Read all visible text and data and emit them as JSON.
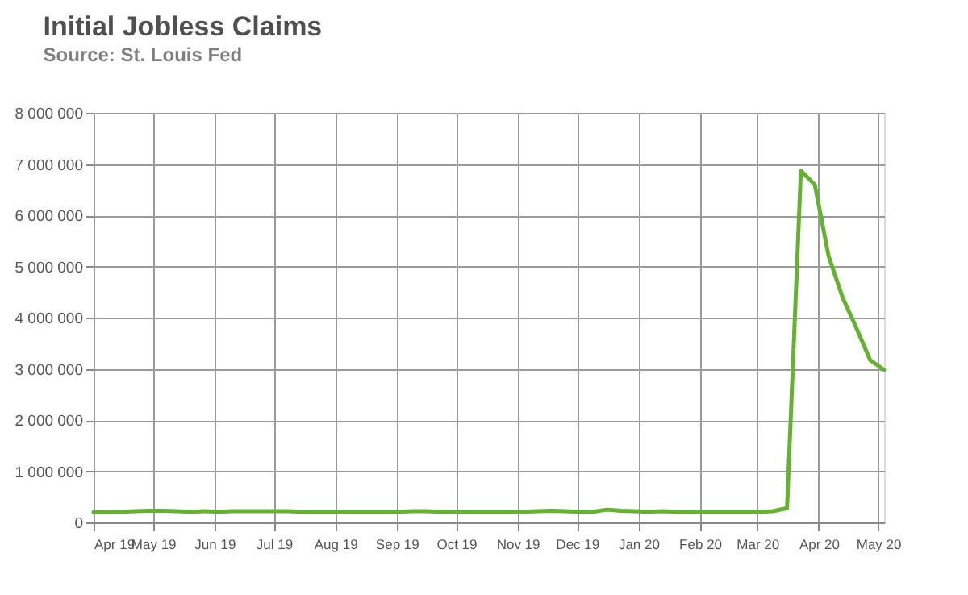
{
  "chart_data": {
    "type": "line",
    "title": "Initial Jobless Claims",
    "subtitle": "Source: St. Louis Fed",
    "x": [
      "2019-04-01",
      "2019-04-08",
      "2019-04-15",
      "2019-04-22",
      "2019-04-29",
      "2019-05-06",
      "2019-05-13",
      "2019-05-20",
      "2019-05-27",
      "2019-06-03",
      "2019-06-10",
      "2019-06-17",
      "2019-06-24",
      "2019-07-01",
      "2019-07-08",
      "2019-07-15",
      "2019-07-22",
      "2019-07-29",
      "2019-08-05",
      "2019-08-12",
      "2019-08-19",
      "2019-08-26",
      "2019-09-02",
      "2019-09-09",
      "2019-09-16",
      "2019-09-23",
      "2019-09-30",
      "2019-10-07",
      "2019-10-14",
      "2019-10-21",
      "2019-10-28",
      "2019-11-04",
      "2019-11-11",
      "2019-11-18",
      "2019-11-25",
      "2019-12-02",
      "2019-12-09",
      "2019-12-16",
      "2019-12-23",
      "2019-12-30",
      "2020-01-06",
      "2020-01-13",
      "2020-01-20",
      "2020-01-27",
      "2020-02-03",
      "2020-02-10",
      "2020-02-17",
      "2020-02-24",
      "2020-03-02",
      "2020-03-09",
      "2020-03-16",
      "2020-03-23",
      "2020-03-30",
      "2020-04-06",
      "2020-04-13",
      "2020-04-20",
      "2020-04-27",
      "2020-05-04"
    ],
    "series": [
      {
        "color": "#66b032",
        "values": [
          200000,
          200000,
          210000,
          220000,
          230000,
          230000,
          220000,
          210000,
          220000,
          210000,
          220000,
          220000,
          220000,
          220000,
          220000,
          210000,
          210000,
          210000,
          210000,
          210000,
          210000,
          210000,
          210000,
          220000,
          220000,
          210000,
          210000,
          210000,
          210000,
          210000,
          210000,
          210000,
          220000,
          230000,
          220000,
          210000,
          210000,
          250000,
          230000,
          220000,
          210000,
          220000,
          210000,
          210000,
          210000,
          210000,
          210000,
          210000,
          210000,
          220000,
          280000,
          6870000,
          6600000,
          5200000,
          4400000,
          3800000,
          3170000,
          2980000
        ]
      }
    ],
    "xlim": [
      "2019-04-01",
      "2020-05-04"
    ],
    "xticks": [
      {
        "value": "2019-04-01",
        "label": "Apr 19"
      },
      {
        "value": "2019-05-01",
        "label": "May 19"
      },
      {
        "value": "2019-06-01",
        "label": "Jun 19"
      },
      {
        "value": "2019-07-01",
        "label": "Jul 19"
      },
      {
        "value": "2019-08-01",
        "label": "Aug 19"
      },
      {
        "value": "2019-09-01",
        "label": "Sep 19"
      },
      {
        "value": "2019-10-01",
        "label": "Oct 19"
      },
      {
        "value": "2019-11-01",
        "label": "Nov 19"
      },
      {
        "value": "2019-12-01",
        "label": "Dec 19"
      },
      {
        "value": "2020-01-01",
        "label": "Jan 20"
      },
      {
        "value": "2020-02-01",
        "label": "Feb 20"
      },
      {
        "value": "2020-03-01",
        "label": "Mar 20"
      },
      {
        "value": "2020-04-01",
        "label": "Apr 20"
      },
      {
        "value": "2020-05-01",
        "label": "May 20"
      }
    ],
    "ylim": [
      0,
      8000000
    ],
    "yticks": [
      0,
      {
        "value": 1000000,
        "label": "1 000 000"
      },
      {
        "value": 2000000,
        "label": "2 000 000"
      },
      {
        "value": 3000000,
        "label": "3 000 000"
      },
      {
        "value": 4000000,
        "label": "4 000 000"
      },
      {
        "value": 5000000,
        "label": "5 000 000"
      },
      {
        "value": 6000000,
        "label": "6 000 000"
      },
      {
        "value": 7000000,
        "label": "7 000 000"
      },
      {
        "value": 8000000,
        "label": "8 000 000"
      }
    ],
    "grid": true,
    "marker": "none",
    "line_style": "solid"
  }
}
